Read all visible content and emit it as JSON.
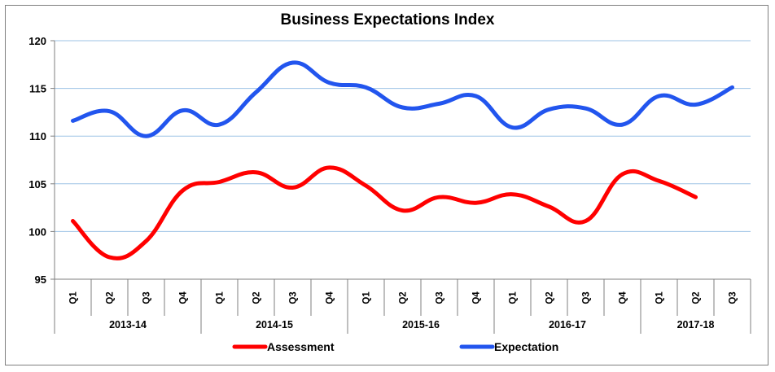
{
  "chart_data": {
    "type": "line",
    "title": "Business Expectations Index",
    "xlabel": "",
    "ylabel": "",
    "ylim": [
      95,
      120
    ],
    "yticks": [
      95,
      100,
      105,
      110,
      115,
      120
    ],
    "grid": true,
    "legend_position": "bottom",
    "categories": [
      "Q1",
      "Q2",
      "Q3",
      "Q4",
      "Q1",
      "Q2",
      "Q3",
      "Q4",
      "Q1",
      "Q2",
      "Q3",
      "Q4",
      "Q1",
      "Q2",
      "Q3",
      "Q4",
      "Q1",
      "Q2",
      "Q3"
    ],
    "groups": [
      {
        "label": "2013-14",
        "count": 4
      },
      {
        "label": "2014-15",
        "count": 4
      },
      {
        "label": "2015-16",
        "count": 4
      },
      {
        "label": "2016-17",
        "count": 4
      },
      {
        "label": "2017-18",
        "count": 3
      }
    ],
    "series": [
      {
        "name": "Assessment",
        "color": "#ff0000",
        "values": [
          101.1,
          97.3,
          99.0,
          104.3,
          105.2,
          106.2,
          104.6,
          106.7,
          104.8,
          102.2,
          103.6,
          103.0,
          103.9,
          102.6,
          101.1,
          106.0,
          105.3,
          103.6,
          null
        ]
      },
      {
        "name": "Expectation",
        "color": "#2255ee",
        "values": [
          111.6,
          112.6,
          110.0,
          112.7,
          111.2,
          114.6,
          117.7,
          115.6,
          115.1,
          113.0,
          113.4,
          114.2,
          110.9,
          112.8,
          112.9,
          111.2,
          114.2,
          113.3,
          115.1
        ]
      }
    ]
  }
}
